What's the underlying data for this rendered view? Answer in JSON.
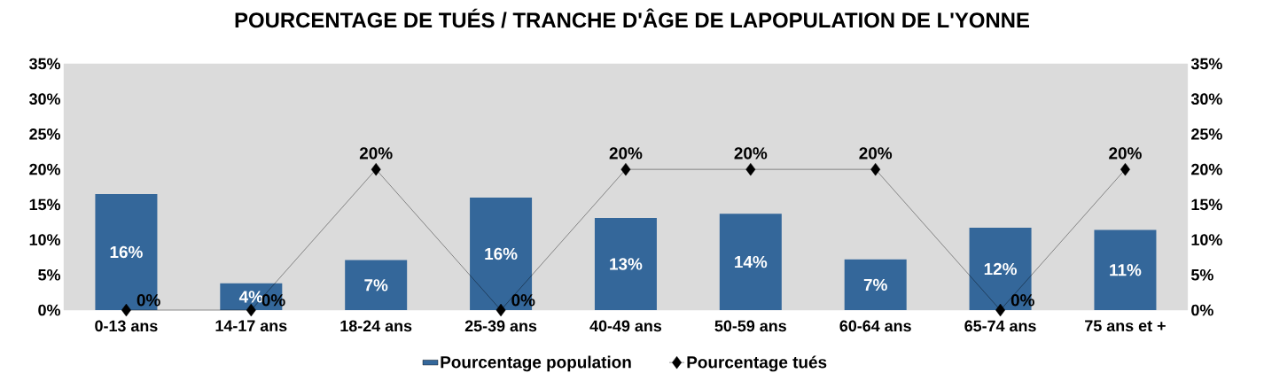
{
  "chart_data": {
    "type": "bar",
    "title": "POURCENTAGE DE TUÉS / TRANCHE D'ÂGE DE LAPOPULATION DE L'YONNE",
    "categories": [
      "0-13 ans",
      "14-17 ans",
      "18-24 ans",
      "25-39 ans",
      "40-49 ans",
      "50-59 ans",
      "60-64 ans",
      "65-74 ans",
      "75 ans et +"
    ],
    "series": [
      {
        "name": "Pourcentage population",
        "color": "#34679a",
        "values": [
          16.5,
          3.8,
          7.1,
          16.0,
          13.1,
          13.7,
          7.2,
          11.7,
          11.4
        ],
        "value_labels": [
          "16%",
          "4%",
          "7%",
          "16%",
          "13%",
          "14%",
          "7%",
          "12%",
          "11%"
        ]
      },
      {
        "name": "Pourcentage tués",
        "type": "line",
        "color": "#000000",
        "marker": "diamond",
        "values": [
          0,
          0,
          20,
          0,
          20,
          20,
          20,
          0,
          20
        ],
        "value_labels": [
          "0%",
          "0%",
          "20%",
          "0%",
          "20%",
          "20%",
          "20%",
          "0%",
          "20%"
        ]
      }
    ],
    "ylim": [
      0,
      35
    ],
    "yticks": [
      {
        "value": 0,
        "label": "0%"
      },
      {
        "value": 5,
        "label": "5%"
      },
      {
        "value": 10,
        "label": "10%"
      },
      {
        "value": 15,
        "label": "15%"
      },
      {
        "value": 20,
        "label": "20%"
      },
      {
        "value": 25,
        "label": "25%"
      },
      {
        "value": 30,
        "label": "30%"
      },
      {
        "value": 35,
        "label": "35%"
      }
    ],
    "y2lim": [
      0,
      35
    ],
    "y2ticks": [
      {
        "value": 0,
        "label": "0%"
      },
      {
        "value": 5,
        "label": "5%"
      },
      {
        "value": 10,
        "label": "10%"
      },
      {
        "value": 15,
        "label": "15%"
      },
      {
        "value": 20,
        "label": "20%"
      },
      {
        "value": 25,
        "label": "25%"
      },
      {
        "value": 30,
        "label": "30%"
      },
      {
        "value": 35,
        "label": "35%"
      }
    ],
    "grid": false,
    "legend": "bottom"
  }
}
